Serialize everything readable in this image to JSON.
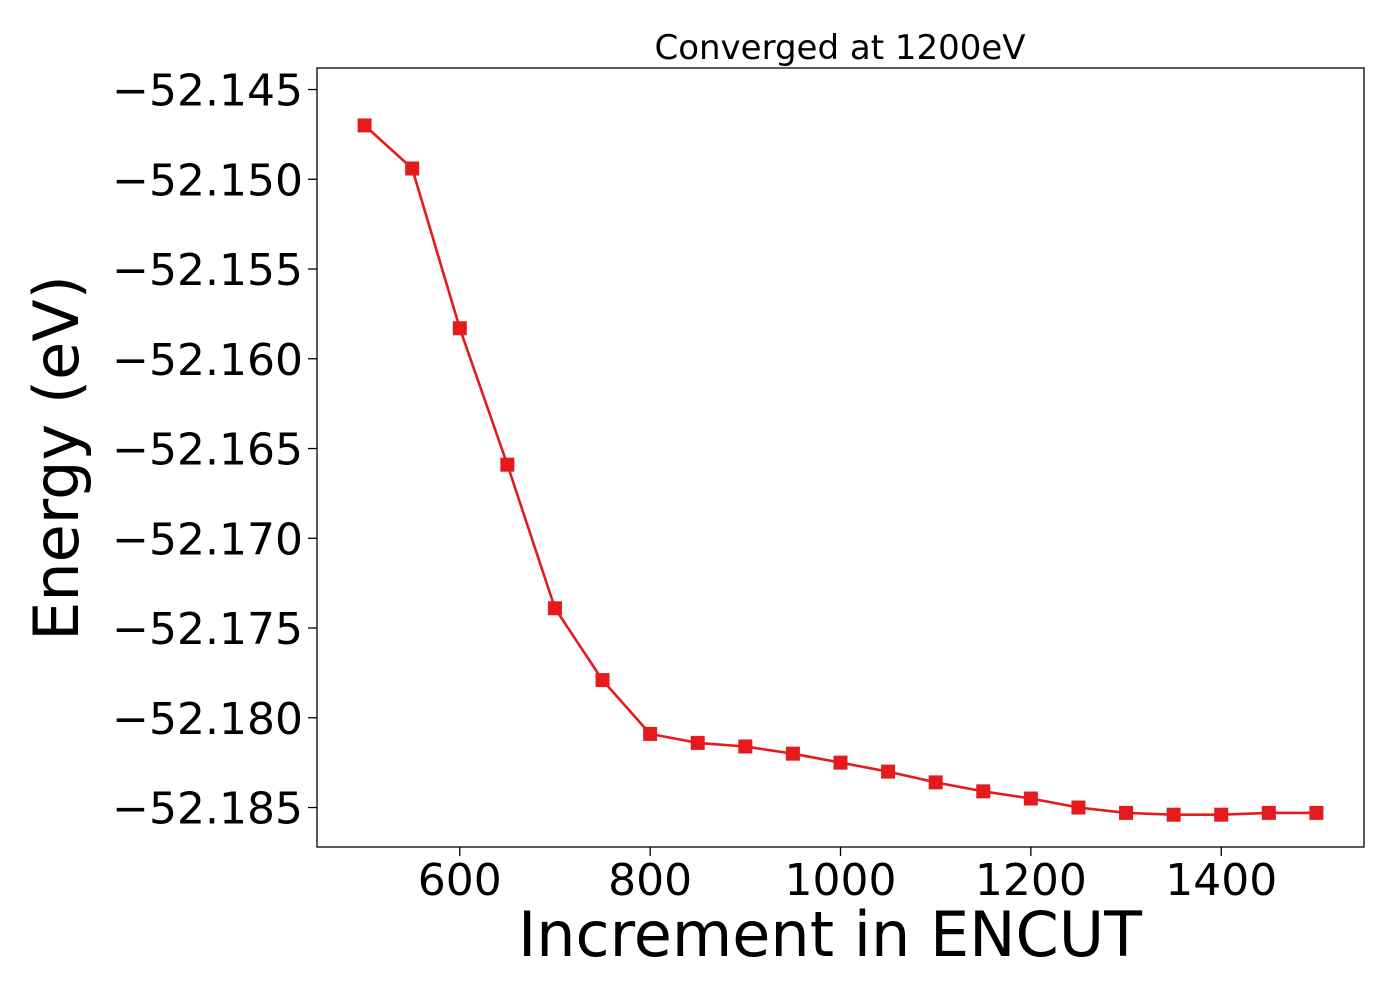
{
  "chart_data": {
    "type": "line",
    "title": "Converged at 1200eV",
    "xlabel": "Increment in ENCUT",
    "ylabel": "Energy (eV)",
    "xlim": [
      450,
      1550
    ],
    "ylim": [
      -52.1872,
      -52.1438
    ],
    "x_ticks": [
      600,
      800,
      1000,
      1200,
      1400
    ],
    "y_ticks": [
      -52.145,
      -52.15,
      -52.155,
      -52.16,
      -52.165,
      -52.17,
      -52.175,
      -52.18,
      -52.185
    ],
    "x_tick_labels": [
      "600",
      "800",
      "1000",
      "1200",
      "1400"
    ],
    "y_tick_labels": [
      "−52.145",
      "−52.150",
      "−52.155",
      "−52.160",
      "−52.165",
      "−52.170",
      "−52.175",
      "−52.180",
      "−52.185"
    ],
    "grid": false,
    "series": [
      {
        "color": "#e41a1c",
        "marker": "square",
        "x": [
          500,
          550,
          600,
          650,
          700,
          750,
          800,
          850,
          900,
          950,
          1000,
          1050,
          1100,
          1150,
          1200,
          1250,
          1300,
          1350,
          1400,
          1450,
          1500
        ],
        "y": [
          -52.147,
          -52.1494,
          -52.1583,
          -52.1659,
          -52.1739,
          -52.1779,
          -52.1809,
          -52.1814,
          -52.1816,
          -52.182,
          -52.1825,
          -52.183,
          -52.1836,
          -52.1841,
          -52.1845,
          -52.185,
          -52.1853,
          -52.1854,
          -52.1854,
          -52.1853,
          -52.1853
        ]
      }
    ]
  }
}
